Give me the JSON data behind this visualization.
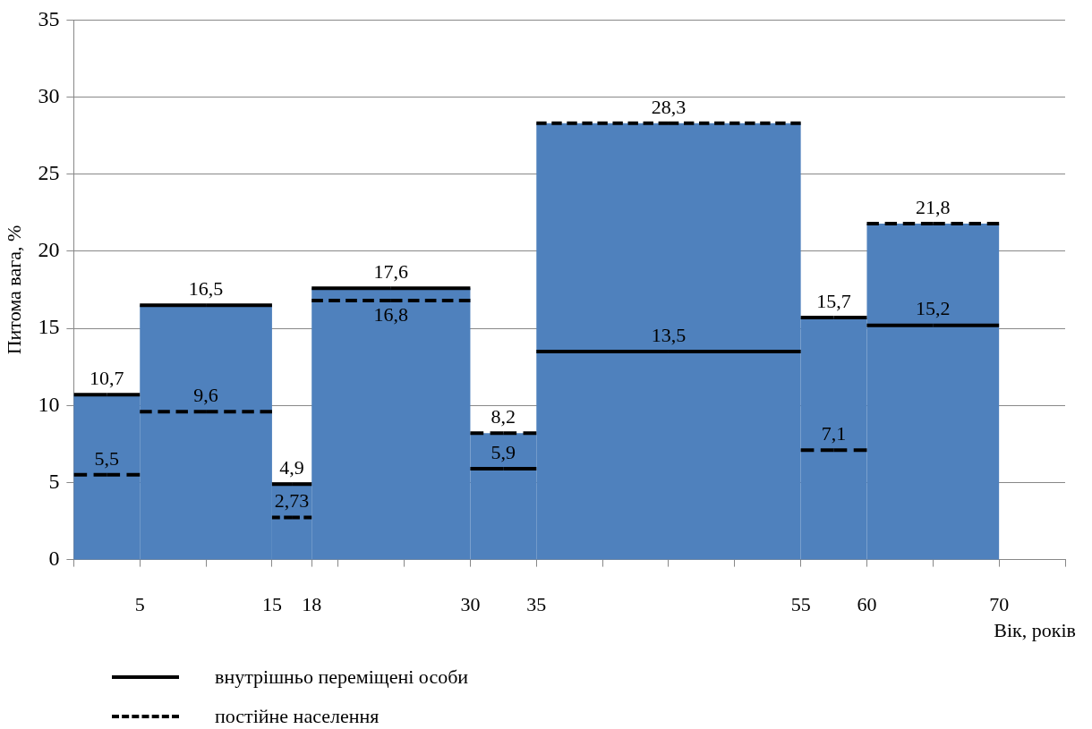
{
  "chart_data": {
    "type": "histogram",
    "ylabel": "Питома вага, %",
    "xlabel": "Вік, років",
    "bins": [
      0,
      5,
      15,
      18,
      30,
      35,
      55,
      60,
      70
    ],
    "values": [
      10.7,
      16.5,
      4.9,
      17.6,
      8.2,
      28.3,
      15.7,
      21.8
    ],
    "color": "#4f81bd",
    "series": [
      {
        "name": "внутрішньо переміщені особи",
        "type": "step",
        "color": "#000000",
        "line_style": "solid",
        "x": [
          0,
          2.5,
          5,
          5,
          10,
          15,
          15,
          16.5,
          18,
          18,
          24,
          30,
          30,
          32.5,
          35,
          35,
          45,
          55,
          55,
          57.5,
          60,
          60,
          65,
          70
        ],
        "values": [
          10.7,
          10.7,
          10.7,
          16.5,
          16.5,
          16.5,
          4.9,
          4.9,
          4.9,
          17.6,
          17.6,
          17.6,
          5.9,
          5.9,
          5.9,
          13.5,
          13.5,
          13.5,
          15.7,
          15.7,
          15.7,
          15.2,
          15.2,
          15.2
        ],
        "value_labels": [
          null,
          "10,7",
          null,
          null,
          "16,5",
          null,
          null,
          "4,9",
          null,
          null,
          "17,6",
          null,
          null,
          "5,9",
          null,
          null,
          "13,5",
          null,
          null,
          "15,7",
          null,
          null,
          "15,2",
          null
        ]
      },
      {
        "name": "постійне населення",
        "type": "step",
        "color": "#000000",
        "line_style": "dashed",
        "x": [
          0,
          2.5,
          5,
          5,
          10,
          15,
          15,
          16.5,
          18,
          18,
          24,
          30,
          30,
          32.5,
          35,
          35,
          45,
          55,
          55,
          57.5,
          60,
          60,
          65,
          70
        ],
        "values": [
          5.5,
          5.5,
          5.5,
          9.6,
          9.6,
          9.6,
          2.73,
          2.73,
          2.73,
          16.8,
          16.8,
          16.8,
          8.2,
          8.2,
          8.2,
          28.3,
          28.3,
          28.3,
          7.1,
          7.1,
          7.1,
          21.8,
          21.8,
          21.8
        ],
        "value_labels": [
          null,
          "5,5",
          null,
          null,
          "9,6",
          null,
          null,
          "2,73",
          null,
          null,
          "16,8",
          null,
          null,
          "8,2",
          null,
          null,
          "28,3",
          null,
          null,
          "7,1",
          null,
          null,
          "21,8",
          null
        ]
      }
    ],
    "xlim": [
      0,
      75
    ],
    "xticks": [
      {
        "value": 0,
        "label": null
      },
      5,
      {
        "value": 10,
        "label": null
      },
      15,
      18,
      {
        "value": 20,
        "label": null
      },
      {
        "value": 25,
        "label": null
      },
      30,
      35,
      {
        "value": 40,
        "label": null
      },
      {
        "value": 45,
        "label": null
      },
      {
        "value": 50,
        "label": null
      },
      55,
      60,
      {
        "value": 65,
        "label": null
      },
      70,
      {
        "value": 75,
        "label": null
      }
    ],
    "ylim": [
      0,
      35
    ],
    "yticks": [
      0,
      5,
      10,
      15,
      20,
      25,
      30,
      35
    ],
    "grid": "y",
    "legend": "bottom"
  }
}
